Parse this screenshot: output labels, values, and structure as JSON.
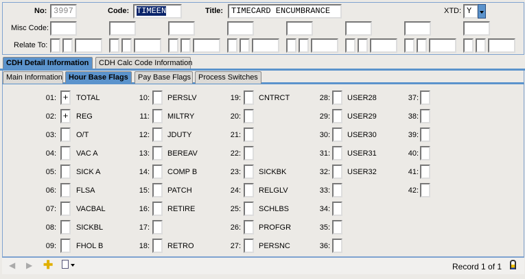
{
  "header": {
    "no_label": "No:",
    "no_value": "3997",
    "code_label": "Code:",
    "code_value": "TIMEEN",
    "title_label": "Title:",
    "title_value": "TIMECARD ENCUMBRANCE",
    "xtd_label": "XTD:",
    "xtd_value": "Y",
    "misc_label": "Misc Code:",
    "relate_label": "Relate To:"
  },
  "tabs": [
    "CDH Detail Information",
    "CDH Calc Code Information"
  ],
  "subtabs": [
    "Main Information",
    "Hour Base Flags",
    "Pay Base Flags",
    "Process Switches"
  ],
  "flags": [
    {
      "n": "01:",
      "v": "+",
      "t": "TOTAL"
    },
    {
      "n": "02:",
      "v": "+",
      "t": "REG"
    },
    {
      "n": "03:",
      "v": "",
      "t": "O/T"
    },
    {
      "n": "04:",
      "v": "",
      "t": "VAC A"
    },
    {
      "n": "05:",
      "v": "",
      "t": "SICK A"
    },
    {
      "n": "06:",
      "v": "",
      "t": "FLSA"
    },
    {
      "n": "07:",
      "v": "",
      "t": "VACBAL"
    },
    {
      "n": "08:",
      "v": "",
      "t": "SICKBL"
    },
    {
      "n": "09:",
      "v": "",
      "t": "FHOL B"
    },
    {
      "n": "10:",
      "v": "",
      "t": "PERSLV"
    },
    {
      "n": "11:",
      "v": "",
      "t": "MILTRY"
    },
    {
      "n": "12:",
      "v": "",
      "t": "JDUTY"
    },
    {
      "n": "13:",
      "v": "",
      "t": "BEREAV"
    },
    {
      "n": "14:",
      "v": "",
      "t": "COMP B"
    },
    {
      "n": "15:",
      "v": "",
      "t": "PATCH"
    },
    {
      "n": "16:",
      "v": "",
      "t": "RETIRE"
    },
    {
      "n": "17:",
      "v": "",
      "t": ""
    },
    {
      "n": "18:",
      "v": "",
      "t": "RETRO"
    },
    {
      "n": "19:",
      "v": "",
      "t": "CNTRCT"
    },
    {
      "n": "20:",
      "v": "",
      "t": ""
    },
    {
      "n": "21:",
      "v": "",
      "t": ""
    },
    {
      "n": "22:",
      "v": "",
      "t": ""
    },
    {
      "n": "23:",
      "v": "",
      "t": "SICKBK"
    },
    {
      "n": "24:",
      "v": "",
      "t": "RELGLV"
    },
    {
      "n": "25:",
      "v": "",
      "t": "SCHLBS"
    },
    {
      "n": "26:",
      "v": "",
      "t": "PROFGR"
    },
    {
      "n": "27:",
      "v": "",
      "t": "PERSNC"
    },
    {
      "n": "28:",
      "v": "",
      "t": "USER28"
    },
    {
      "n": "29:",
      "v": "",
      "t": "USER29"
    },
    {
      "n": "30:",
      "v": "",
      "t": "USER30"
    },
    {
      "n": "31:",
      "v": "",
      "t": "USER31"
    },
    {
      "n": "32:",
      "v": "",
      "t": "USER32"
    },
    {
      "n": "33:",
      "v": "",
      "t": ""
    },
    {
      "n": "34:",
      "v": "",
      "t": ""
    },
    {
      "n": "35:",
      "v": "",
      "t": ""
    },
    {
      "n": "36:",
      "v": "",
      "t": ""
    },
    {
      "n": "37:",
      "v": "",
      "t": ""
    },
    {
      "n": "38:",
      "v": "",
      "t": ""
    },
    {
      "n": "39:",
      "v": "",
      "t": ""
    },
    {
      "n": "40:",
      "v": "",
      "t": ""
    },
    {
      "n": "41:",
      "v": "",
      "t": ""
    },
    {
      "n": "42:",
      "v": "",
      "t": ""
    }
  ],
  "footer": {
    "record": "Record 1 of 1"
  },
  "icons": {
    "prev": "arrow-left-icon",
    "next": "arrow-right-icon",
    "add": "plus-icon",
    "report": "report-menu-icon",
    "lock": "lock-icon"
  },
  "colors": {
    "accent": "#5b93cc",
    "selection": "#0a246a"
  }
}
